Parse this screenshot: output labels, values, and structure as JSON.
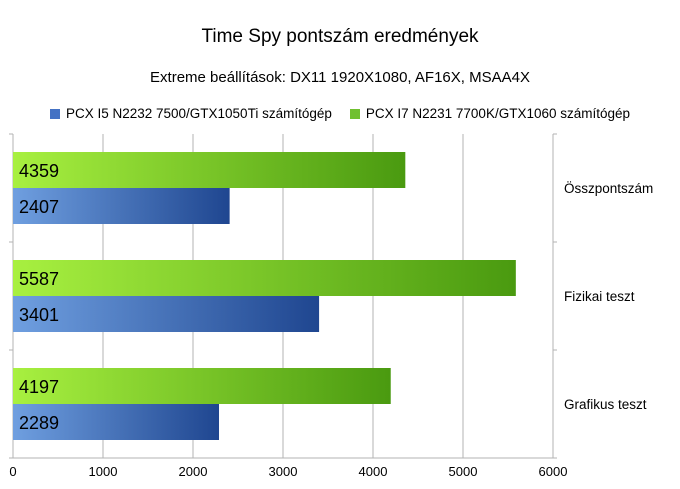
{
  "chart_data": {
    "type": "bar",
    "orientation": "horizontal",
    "title": "Time Spy pontszám eredmények",
    "subtitle": "Extreme beállítások: DX11 1920X1080, AF16X, MSAA4X",
    "categories": [
      "Összpontszám",
      "Fizikai teszt",
      "Grafikus teszt"
    ],
    "series": [
      {
        "name": "PCX I5 N2232 7500/GTX1050Ti számítógép",
        "values": [
          2407,
          3401,
          2289
        ],
        "color": "#4472c4"
      },
      {
        "name": "PCX I7 N2231 7700K/GTX1060 számítógép",
        "values": [
          4359,
          5587,
          4197
        ],
        "color": "#70c030"
      }
    ],
    "xlim": [
      0,
      6000
    ],
    "xticks": [
      0,
      1000,
      2000,
      3000,
      4000,
      5000,
      6000
    ],
    "grid": true,
    "legend_position": "top"
  }
}
